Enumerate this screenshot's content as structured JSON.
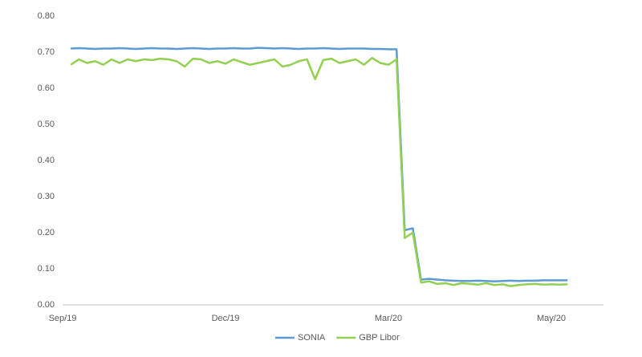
{
  "chart_data": {
    "type": "line",
    "categories": [
      "Sep/19",
      null,
      null,
      null,
      null,
      null,
      null,
      null,
      null,
      null,
      null,
      null,
      null,
      null,
      null,
      null,
      null,
      null,
      null,
      null,
      "Dec/19",
      null,
      null,
      null,
      null,
      null,
      null,
      null,
      null,
      null,
      null,
      null,
      null,
      null,
      null,
      null,
      null,
      null,
      null,
      null,
      "Mar/20",
      null,
      null,
      null,
      null,
      null,
      null,
      null,
      null,
      null,
      null,
      null,
      null,
      null,
      null,
      null,
      null,
      null,
      null,
      null,
      "May/20",
      null,
      null,
      null,
      null,
      null
    ],
    "series": [
      {
        "name": "SONIA",
        "color": "#5b9bd5",
        "values": [
          null,
          0.71,
          0.711,
          0.71,
          0.709,
          0.71,
          0.71,
          0.711,
          0.71,
          0.709,
          0.71,
          0.711,
          0.71,
          0.71,
          0.709,
          0.71,
          0.711,
          0.71,
          0.709,
          0.71,
          0.71,
          0.711,
          0.71,
          0.71,
          0.712,
          0.711,
          0.71,
          0.711,
          0.71,
          0.709,
          0.71,
          0.71,
          0.711,
          0.71,
          0.709,
          0.71,
          0.71,
          0.71,
          0.709,
          0.709,
          0.708,
          0.708,
          0.207,
          0.212,
          0.07,
          0.072,
          0.07,
          0.068,
          0.067,
          0.066,
          0.066,
          0.067,
          0.066,
          0.065,
          0.066,
          0.067,
          0.066,
          0.067,
          0.067,
          0.068,
          0.068,
          0.068,
          0.068,
          null,
          null,
          null
        ]
      },
      {
        "name": "GBP Libor",
        "color": "#92d050",
        "values": [
          null,
          0.665,
          0.68,
          0.67,
          0.675,
          0.665,
          0.68,
          0.67,
          0.68,
          0.675,
          0.68,
          0.678,
          0.682,
          0.68,
          0.675,
          0.66,
          0.682,
          0.68,
          0.67,
          0.675,
          0.668,
          0.68,
          0.672,
          0.665,
          0.67,
          0.675,
          0.68,
          0.66,
          0.665,
          0.675,
          0.68,
          0.625,
          0.678,
          0.682,
          0.67,
          0.675,
          0.68,
          0.665,
          0.684,
          0.67,
          0.665,
          0.68,
          0.185,
          0.2,
          0.062,
          0.065,
          0.058,
          0.06,
          0.055,
          0.06,
          0.058,
          0.056,
          0.06,
          0.055,
          0.057,
          0.052,
          0.055,
          0.057,
          0.058,
          0.056,
          0.057,
          0.056,
          0.057,
          null,
          null,
          null
        ]
      }
    ],
    "ylim": [
      0,
      0.8
    ],
    "yticks": [
      {
        "value": 0,
        "label": "0.00"
      },
      {
        "value": 0.1,
        "label": "0.10"
      },
      {
        "value": 0.2,
        "label": "0.20"
      },
      {
        "value": 0.3,
        "label": "0.30"
      },
      {
        "value": 0.4,
        "label": "0.40"
      },
      {
        "value": 0.5,
        "label": "0.50"
      },
      {
        "value": 0.6,
        "label": "0.60"
      },
      {
        "value": 0.7,
        "label": "0.70"
      },
      {
        "value": 0.8,
        "label": "0.80"
      }
    ],
    "grid": false,
    "legend": "bottom"
  }
}
